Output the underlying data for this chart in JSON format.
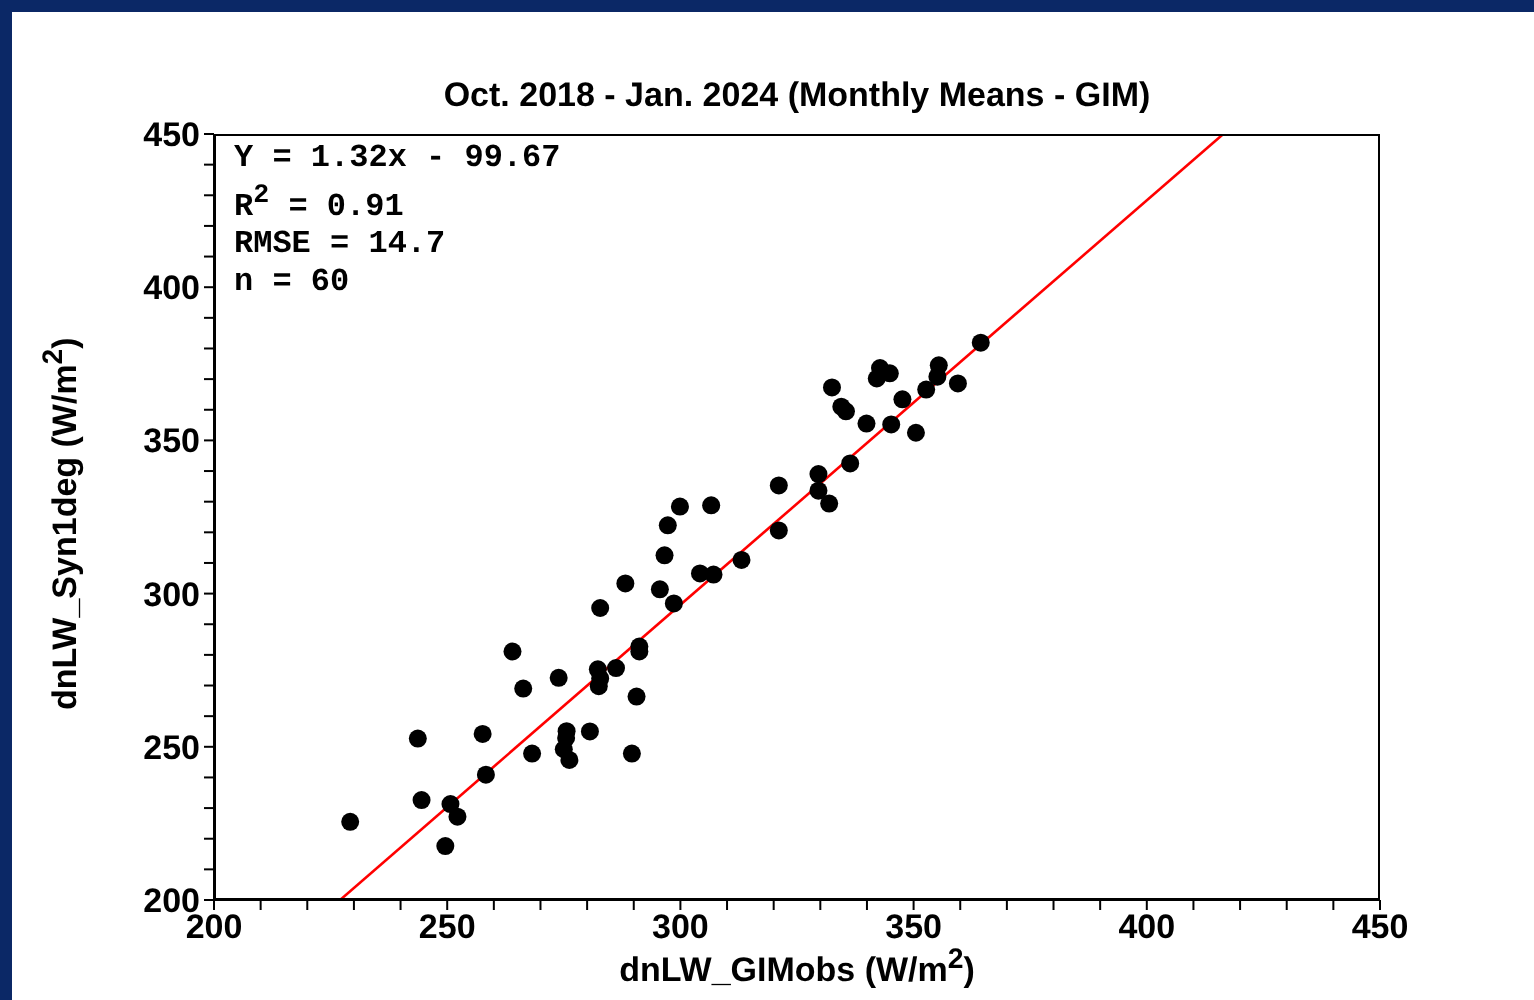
{
  "chart_data": {
    "type": "scatter",
    "title": "Oct. 2018 - Jan. 2024 (Monthly Means - GIM)",
    "xlabel": "dnLW_GIMobs (W/m$^{2}$)",
    "ylabel": "dnLW_Syn1deg (W/m$^{2}$)",
    "annotations": [
      "Y = 1.32x - 99.67",
      "R$^{2}$ = 0.91",
      "RMSE = 14.7",
      "n = 60"
    ],
    "xlim": [
      200,
      450
    ],
    "ylim": [
      200,
      450
    ],
    "xticks": [
      200,
      {
        "value": 210,
        "label": null
      },
      {
        "value": 220,
        "label": null
      },
      {
        "value": 230,
        "label": null
      },
      {
        "value": 240,
        "label": null
      },
      250,
      {
        "value": 260,
        "label": null
      },
      {
        "value": 270,
        "label": null
      },
      {
        "value": 280,
        "label": null
      },
      {
        "value": 290,
        "label": null
      },
      300,
      {
        "value": 310,
        "label": null
      },
      {
        "value": 320,
        "label": null
      },
      {
        "value": 330,
        "label": null
      },
      {
        "value": 340,
        "label": null
      },
      350,
      {
        "value": 360,
        "label": null
      },
      {
        "value": 370,
        "label": null
      },
      {
        "value": 380,
        "label": null
      },
      {
        "value": 390,
        "label": null
      },
      400,
      {
        "value": 410,
        "label": null
      },
      {
        "value": 420,
        "label": null
      },
      {
        "value": 430,
        "label": null
      },
      {
        "value": 440,
        "label": null
      },
      450
    ],
    "yticks": [
      200,
      {
        "value": 210,
        "label": null
      },
      {
        "value": 220,
        "label": null
      },
      {
        "value": 230,
        "label": null
      },
      {
        "value": 240,
        "label": null
      },
      250,
      {
        "value": 260,
        "label": null
      },
      {
        "value": 270,
        "label": null
      },
      {
        "value": 280,
        "label": null
      },
      {
        "value": 290,
        "label": null
      },
      300,
      {
        "value": 310,
        "label": null
      },
      {
        "value": 320,
        "label": null
      },
      {
        "value": 330,
        "label": null
      },
      {
        "value": 340,
        "label": null
      },
      350,
      {
        "value": 360,
        "label": null
      },
      {
        "value": 370,
        "label": null
      },
      {
        "value": 380,
        "label": null
      },
      {
        "value": 390,
        "label": null
      },
      400,
      {
        "value": 410,
        "label": null
      },
      {
        "value": 420,
        "label": null
      },
      {
        "value": 430,
        "label": null
      },
      {
        "value": 440,
        "label": null
      },
      450
    ],
    "grid": false,
    "series": [
      {
        "marker": "circle",
        "color": "#000000",
        "x": [
          229.2,
          243.7,
          244.5,
          250.7,
          252.2,
          249.6,
          257.6,
          258.3,
          264,
          266.3,
          268.2,
          273.9,
          275.6,
          275.5,
          275,
          276.2,
          280.6,
          282.3,
          282.8,
          282.5,
          286.2,
          289.6,
          290.6,
          291.2,
          291.2,
          282.8,
          288.2,
          295.6,
          296.6,
          297.3,
          299.9,
          298.6,
          304.2,
          307.1,
          306.6,
          313.1,
          321.1,
          321.1,
          329.6,
          329.6,
          331.9,
          336.4,
          332.5,
          334.5,
          335.5,
          339.9,
          345.2,
          350.5,
          347.6,
          352.7,
          342.1,
          342.8,
          344.9,
          355.4,
          355.1,
          359.5,
          364.4
        ],
        "values": [
          225.5,
          252.7,
          232.6,
          231.3,
          227.2,
          217.6,
          254.2,
          240.9,
          281.1,
          269,
          247.8,
          272.5,
          255.1,
          252.9,
          249.2,
          245.7,
          255,
          275.3,
          272.3,
          269.8,
          275.7,
          247.8,
          266.4,
          282.7,
          281.1,
          295.3,
          303.3,
          301.4,
          312.5,
          322.3,
          328.4,
          296.8,
          306.6,
          306.2,
          328.8,
          311,
          320.6,
          335.3,
          339,
          333.6,
          329.4,
          342.5,
          367.3,
          361,
          359.5,
          355.5,
          355.2,
          352.5,
          363.4,
          366.6,
          370.2,
          373.6,
          371.9,
          374.5,
          370.8,
          368.6,
          381.9
        ]
      },
      {
        "type": "line",
        "color": "#ff0000",
        "x": [
          227.1,
          416.4
        ],
        "values": [
          200.1,
          450.0
        ]
      }
    ]
  }
}
